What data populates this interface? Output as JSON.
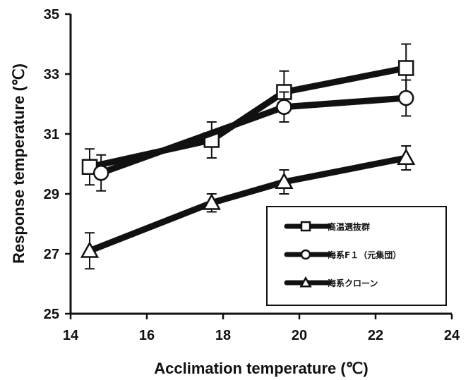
{
  "chart_data": {
    "type": "line",
    "xlabel": "Acclimation temperature (℃)",
    "ylabel": "Response temperature (℃)",
    "xlim": [
      14,
      24
    ],
    "ylim": [
      25,
      35
    ],
    "xticks": [
      14,
      16,
      18,
      20,
      22,
      24
    ],
    "yticks": [
      25,
      27,
      29,
      31,
      33,
      35
    ],
    "grid": false,
    "legend_position": "bottom-right",
    "series": [
      {
        "name": "高温選抜群",
        "marker": "square",
        "x": [
          14.5,
          17.7,
          19.6,
          22.8
        ],
        "y": [
          29.9,
          30.8,
          32.4,
          33.2
        ],
        "err": [
          0.6,
          0.6,
          0.7,
          0.8
        ]
      },
      {
        "name": "海系F１（元集団）",
        "marker": "circle",
        "x": [
          14.8,
          19.6,
          22.8
        ],
        "y": [
          29.7,
          31.9,
          32.2
        ],
        "err": [
          0.6,
          0.5,
          0.6
        ]
      },
      {
        "name": "海系クローン",
        "marker": "triangle",
        "x": [
          14.5,
          17.7,
          19.6,
          22.8
        ],
        "y": [
          27.1,
          28.7,
          29.4,
          30.2
        ],
        "err": [
          0.6,
          0.3,
          0.4,
          0.4
        ]
      }
    ],
    "colors": {
      "line": "#111111",
      "marker_fill": "#ffffff"
    }
  }
}
